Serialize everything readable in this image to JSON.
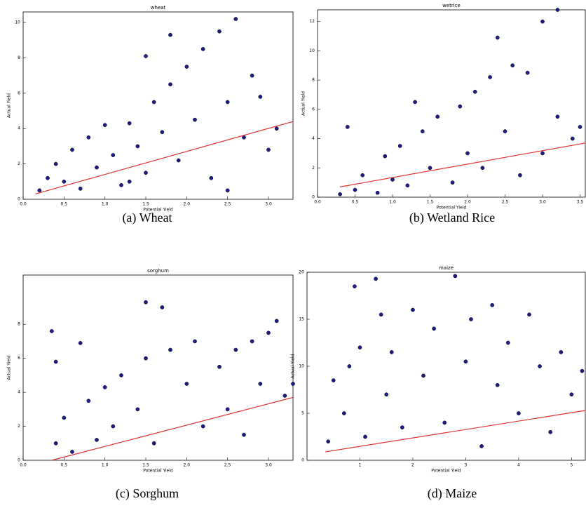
{
  "chart_data": [
    {
      "type": "scatter",
      "title": "wheat",
      "xlabel": "Potential Yield",
      "ylabel": "Actual Yield",
      "caption": "(a)  Wheat",
      "color": "#1c1c8a",
      "x": [
        0.2,
        0.3,
        0.4,
        0.5,
        0.6,
        0.7,
        0.8,
        0.9,
        1.0,
        1.1,
        1.2,
        1.3,
        1.4,
        1.5,
        1.6,
        1.7,
        1.8,
        1.9,
        2.0,
        2.1,
        2.2,
        2.3,
        2.4,
        2.5,
        2.6,
        2.7,
        2.8,
        2.9,
        3.0,
        3.1,
        1.5,
        1.8,
        1.3,
        2.5
      ],
      "values": [
        0.5,
        1.2,
        2.0,
        1.0,
        2.8,
        0.6,
        3.5,
        1.8,
        4.2,
        2.5,
        0.8,
        4.3,
        3.0,
        1.5,
        5.5,
        3.8,
        6.5,
        2.2,
        7.5,
        4.5,
        8.5,
        1.2,
        9.5,
        5.5,
        10.2,
        3.5,
        7.0,
        5.8,
        2.8,
        4.0,
        8.1,
        9.3,
        1.0,
        0.5
      ],
      "xlim": [
        0,
        3.3
      ],
      "ylim": [
        0,
        10.6
      ],
      "xticks": [
        {
          "value": 0,
          "label": "0.0"
        },
        0.5,
        {
          "value": 1,
          "label": "1.0"
        },
        1.5,
        {
          "value": 2,
          "label": "2.0"
        },
        2.5,
        {
          "value": 3,
          "label": "3.0"
        }
      ],
      "yticks": [
        0,
        2,
        4,
        6,
        8,
        10
      ],
      "fit": {
        "x": [
          0.15,
          3.3
        ],
        "y": [
          0.3,
          4.4
        ],
        "color": "#e03030"
      }
    },
    {
      "type": "scatter",
      "title": "wetrice",
      "xlabel": "Potential Yield",
      "ylabel": "Actual Yield",
      "caption": "(b)  Wetland Rice",
      "color": "#1c1c8a",
      "x": [
        0.3,
        0.4,
        0.5,
        0.6,
        0.8,
        0.9,
        1.0,
        1.1,
        1.2,
        1.4,
        1.5,
        1.6,
        1.8,
        1.9,
        2.0,
        2.1,
        2.2,
        2.3,
        2.4,
        2.5,
        2.6,
        2.7,
        2.8,
        3.0,
        3.0,
        3.2,
        3.4,
        3.5,
        3.2,
        1.3
      ],
      "values": [
        0.2,
        4.8,
        0.5,
        1.5,
        0.3,
        2.8,
        1.2,
        3.5,
        0.8,
        4.5,
        2.0,
        5.5,
        1.0,
        6.2,
        3.0,
        7.2,
        2.0,
        8.2,
        10.9,
        4.5,
        9.0,
        1.5,
        8.5,
        12.0,
        3.0,
        5.5,
        4.0,
        4.8,
        12.8,
        6.5
      ],
      "xlim": [
        0,
        3.57
      ],
      "ylim": [
        0,
        12.8
      ],
      "xticks": [
        {
          "value": 0,
          "label": "0.0"
        },
        0.5,
        {
          "value": 1,
          "label": "1.0"
        },
        1.5,
        {
          "value": 2,
          "label": "2.0"
        },
        2.5,
        {
          "value": 3,
          "label": "3.0"
        },
        3.5
      ],
      "yticks": [
        0,
        2,
        4,
        6,
        8,
        10,
        12
      ],
      "fit": {
        "x": [
          0.3,
          3.57
        ],
        "y": [
          0.7,
          3.7
        ],
        "color": "#e03030"
      }
    },
    {
      "type": "scatter",
      "title": "sorghum",
      "xlabel": "Potential Yield",
      "ylabel": "Actual Yield",
      "caption": "(c)  Sorghum",
      "color": "#1c1c8a",
      "x": [
        0.35,
        0.4,
        0.4,
        0.5,
        0.6,
        0.7,
        0.8,
        0.9,
        1.0,
        1.1,
        1.2,
        1.4,
        1.5,
        1.6,
        1.5,
        1.7,
        1.8,
        2.0,
        2.1,
        2.2,
        2.4,
        2.5,
        2.6,
        2.8,
        2.9,
        3.0,
        3.1,
        3.2,
        3.3,
        2.7
      ],
      "values": [
        7.6,
        1.0,
        5.8,
        2.5,
        0.5,
        6.9,
        3.5,
        1.2,
        4.3,
        2.0,
        5.0,
        3.0,
        6.0,
        1.0,
        9.3,
        9.0,
        6.5,
        4.5,
        7.0,
        2.0,
        5.5,
        3.0,
        6.5,
        7.0,
        4.5,
        7.5,
        8.2,
        3.8,
        4.5,
        1.5
      ],
      "xlim": [
        0,
        3.3
      ],
      "ylim": [
        0,
        10.9
      ],
      "xticks": [
        {
          "value": 0,
          "label": "0.0"
        },
        0.5,
        {
          "value": 1,
          "label": "1.0"
        },
        1.5,
        {
          "value": 2,
          "label": "2.0"
        },
        2.5,
        {
          "value": 3,
          "label": "3.0"
        }
      ],
      "yticks": [
        0,
        2,
        4,
        6,
        8
      ],
      "fit": {
        "x": [
          0.35,
          3.3
        ],
        "y": [
          0,
          3.7
        ],
        "color": "#e03030"
      }
    },
    {
      "type": "scatter",
      "title": "maize",
      "xlabel": "Potential Yield",
      "ylabel": "Actual Yield",
      "caption": "(d)  Maize",
      "color": "#1c1c8a",
      "x": [
        0.4,
        0.5,
        0.7,
        0.8,
        0.9,
        1.0,
        1.1,
        1.3,
        1.4,
        1.5,
        1.6,
        1.8,
        2.0,
        2.2,
        2.4,
        2.6,
        2.8,
        3.0,
        3.1,
        3.3,
        3.5,
        3.6,
        3.8,
        4.0,
        4.2,
        4.4,
        4.6,
        4.8,
        5.0,
        5.2
      ],
      "values": [
        2.0,
        8.5,
        5.0,
        10.0,
        18.5,
        12.0,
        2.5,
        19.3,
        15.5,
        7.0,
        11.5,
        3.5,
        16.0,
        9.0,
        14.0,
        4.0,
        19.6,
        10.5,
        15.0,
        1.5,
        16.5,
        8.0,
        12.5,
        5.0,
        15.5,
        10.0,
        3.0,
        11.5,
        7.0,
        9.5
      ],
      "xlim": [
        0,
        5.26
      ],
      "ylim": [
        0,
        20
      ],
      "xticks": [
        1,
        2,
        3,
        4,
        5
      ],
      "yticks": [
        0,
        5,
        10,
        15,
        20
      ],
      "fit": {
        "x": [
          0.35,
          5.26
        ],
        "y": [
          0.9,
          5.3
        ],
        "color": "#e03030"
      }
    }
  ]
}
